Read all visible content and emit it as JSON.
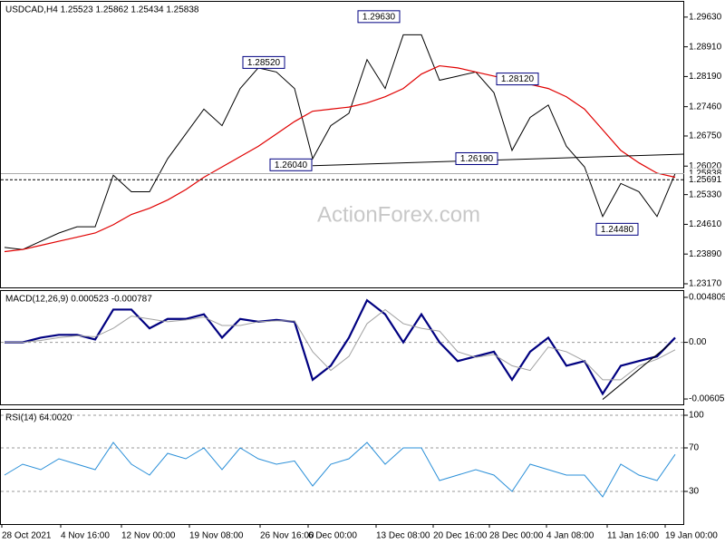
{
  "chart_data": [
    {
      "type": "line",
      "title": "USDCAD,H4 1.25523 1.25862 1.25434 1.25838",
      "watermark": "ActionForex.com",
      "ylim": [
        1.2306,
        1.3
      ],
      "yticks": [
        {
          "value": 1.2963,
          "label": "1.29630"
        },
        {
          "value": 1.2891,
          "label": "1.28910"
        },
        {
          "value": 1.2819,
          "label": "1.28190"
        },
        {
          "value": 1.2746,
          "label": "1.27460"
        },
        {
          "value": 1.2675,
          "label": "1.26750"
        },
        {
          "value": 1.2602,
          "label": "1.26020"
        },
        {
          "value": 1.2533,
          "label": "1.25330"
        },
        {
          "value": 1.2461,
          "label": "1.24610"
        },
        {
          "value": 1.2389,
          "label": "1.23890"
        },
        {
          "value": 1.2317,
          "label": "1.23170"
        }
      ],
      "series": [
        {
          "name": "Close",
          "color": "#000000",
          "values": [
            1.2405,
            1.24,
            1.242,
            1.244,
            1.2455,
            1.2455,
            1.258,
            1.254,
            1.254,
            1.262,
            1.268,
            1.274,
            1.27,
            1.279,
            1.284,
            1.283,
            1.279,
            1.262,
            1.27,
            1.273,
            1.286,
            1.279,
            1.292,
            1.292,
            1.281,
            1.282,
            1.283,
            1.278,
            1.264,
            1.272,
            1.275,
            1.265,
            1.26,
            1.248,
            1.256,
            1.254,
            1.248,
            1.2584
          ]
        },
        {
          "name": "MA",
          "color": "#e00000",
          "values": [
            1.2395,
            1.24,
            1.241,
            1.242,
            1.243,
            1.244,
            1.246,
            1.2485,
            1.25,
            1.252,
            1.2545,
            1.2575,
            1.26,
            1.2625,
            1.265,
            1.268,
            1.271,
            1.2735,
            1.274,
            1.2745,
            1.2755,
            1.277,
            1.279,
            1.2825,
            1.2845,
            1.284,
            1.283,
            1.282,
            1.281,
            1.28,
            1.279,
            1.277,
            1.274,
            1.269,
            1.264,
            1.261,
            1.2585,
            1.2575
          ]
        }
      ],
      "annotations": [
        {
          "value": 1.2852,
          "label": "1.28520"
        },
        {
          "value": 1.2963,
          "label": "1.29630"
        },
        {
          "value": 1.2812,
          "label": "1.28120"
        },
        {
          "value": 1.2604,
          "label": "1.26040"
        },
        {
          "value": 1.2619,
          "label": "1.26190"
        },
        {
          "value": 1.2448,
          "label": "1.24480"
        }
      ],
      "price_markers": [
        {
          "value": 1.25838,
          "label": "1.25838"
        },
        {
          "value": 1.25691,
          "label": "1.25691"
        }
      ],
      "trendline": [
        1.2603,
        1.2631
      ]
    },
    {
      "type": "line",
      "title": "MACD(12,26,9) 0.000523 -0.000787",
      "ylim": [
        -0.006723,
        0.005482
      ],
      "yticks": [
        0.004809,
        {
          "value": 0,
          "label": "0.00"
        },
        -0.00605
      ],
      "zero_line": true,
      "series": [
        {
          "name": "MACD",
          "color": "#000080",
          "values": [
            0,
            0,
            0.0005,
            0.0008,
            0.0008,
            0.0003,
            0.0035,
            0.0035,
            0.0015,
            0.0025,
            0.0025,
            0.003,
            0.0005,
            0.0025,
            0.0022,
            0.0024,
            0.0022,
            -0.004,
            -0.0025,
            0.0005,
            0.0045,
            0.003,
            0,
            0.003,
            0,
            -0.002,
            -0.0015,
            -0.001,
            -0.004,
            -0.001,
            0.0005,
            -0.0025,
            -0.002,
            -0.0055,
            -0.0025,
            -0.002,
            -0.0015,
            0.0005
          ]
        },
        {
          "name": "Signal",
          "color": "#a0a0a0",
          "values": [
            0,
            0,
            0.0002,
            0.0005,
            0.0007,
            0.0006,
            0.0015,
            0.0028,
            0.0025,
            0.0022,
            0.0024,
            0.0027,
            0.0018,
            0.0018,
            0.0022,
            0.0023,
            0.0023,
            -0.001,
            -0.003,
            -0.0015,
            0.002,
            0.0035,
            0.002,
            0.0015,
            0.0012,
            -0.001,
            -0.0016,
            -0.0013,
            -0.0025,
            -0.003,
            -0.0005,
            -0.001,
            -0.002,
            -0.004,
            -0.004,
            -0.0025,
            -0.0018,
            -0.0008
          ]
        }
      ],
      "trendline": [
        -0.0061,
        -0.0001
      ]
    },
    {
      "type": "line",
      "title": "RSI(14) 64.0020",
      "ylim": [
        0,
        105
      ],
      "yticks": [
        100,
        70,
        30
      ],
      "grid": true,
      "series": [
        {
          "name": "RSI",
          "color": "#2a8fd8",
          "values": [
            45,
            55,
            50,
            60,
            55,
            50,
            75,
            55,
            45,
            65,
            60,
            70,
            50,
            70,
            60,
            55,
            58,
            35,
            55,
            60,
            75,
            55,
            70,
            70,
            40,
            45,
            50,
            45,
            30,
            55,
            50,
            45,
            45,
            25,
            55,
            45,
            40,
            64
          ]
        }
      ],
      "xtick_labels": [
        "28 Oct 2021",
        "4 Nov 16:00",
        "12 Nov 00:00",
        "19 Nov 08:00",
        "26 Nov 16:00",
        "6 Dec 00:00",
        "13 Dec 08:00",
        "20 Dec 16:00",
        "28 Dec 00:00",
        "4 Jan 08:00",
        "11 Jan 16:00",
        "19 Jan 00:00"
      ]
    }
  ]
}
